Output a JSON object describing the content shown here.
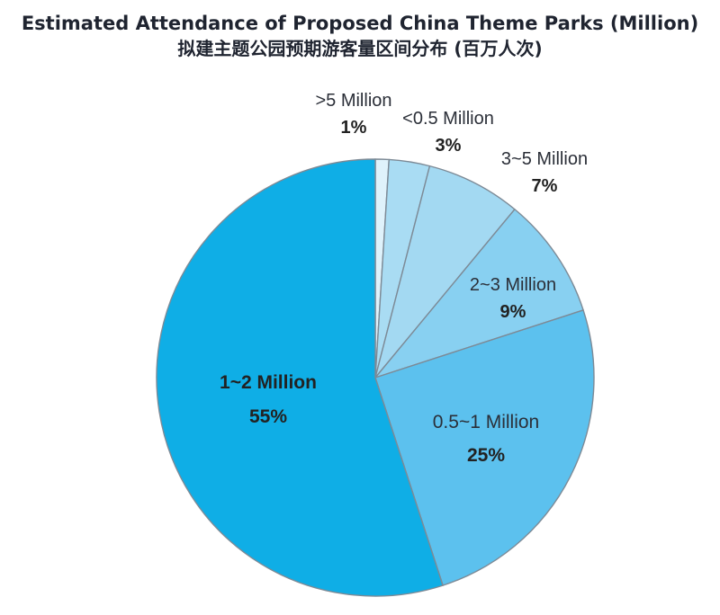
{
  "title": "Estimated Attendance of Proposed China Theme Parks (Million)",
  "subtitle": "拟建主题公园预期游客量区间分布 (百万人次)",
  "chart_data": {
    "type": "pie",
    "title": "Estimated Attendance of Proposed China Theme Parks (Million)",
    "subtitle": "拟建主题公园预期游客量区间分布 (百万人次)",
    "start": "12 o'clock",
    "direction": "clockwise",
    "slices": [
      {
        "label": ">5 Million",
        "value": 1,
        "pct_label": "1%",
        "color": "#dff2fb"
      },
      {
        "label": "<0.5 Million",
        "value": 3,
        "pct_label": "3%",
        "color": "#a9dcf3"
      },
      {
        "label": "3~5 Million",
        "value": 7,
        "pct_label": "7%",
        "color": "#a3d9f2"
      },
      {
        "label": "2~3 Million",
        "value": 9,
        "pct_label": "9%",
        "color": "#88d0f1"
      },
      {
        "label": "0.5~1 Million",
        "value": 25,
        "pct_label": "25%",
        "color": "#5cc1ee"
      },
      {
        "label": "1~2 Million",
        "value": 55,
        "pct_label": "55%",
        "color": "#0faee6"
      }
    ]
  }
}
